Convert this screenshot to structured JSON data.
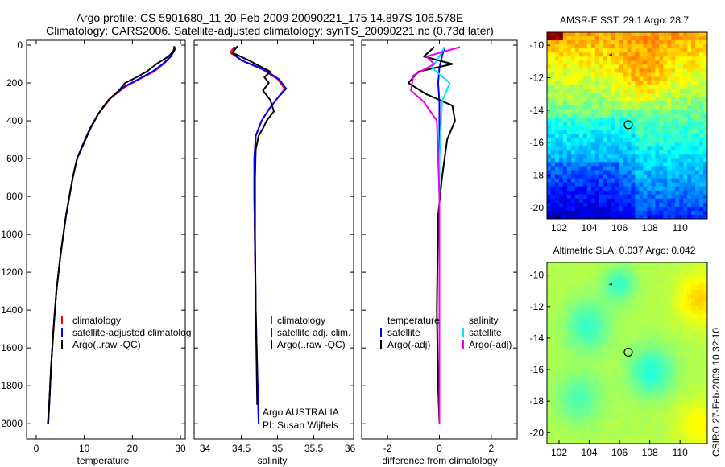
{
  "header": {
    "line1": "Argo profile: CS 5901680_11 20-Feb-2009 20090221_175 14.897S 106.578E",
    "line2": "Climatology: CARS2006. Satellite-adjusted climatology: synTS_20090221.nc (0.73d later)"
  },
  "colors": {
    "climatology": "#ff0000",
    "satellite": "#0000ff",
    "argo": "#000000",
    "sal_satellite": "#00e5ee",
    "sal_argo": "#ee00ee"
  },
  "chart_data": [
    {
      "type": "line",
      "panel": "temperature",
      "xlabel": "temperature",
      "ylabel": "",
      "xlim": [
        -2,
        31
      ],
      "ylim": [
        2080,
        0
      ],
      "x_ticks": [
        0,
        10,
        20,
        30
      ],
      "y_ticks": [
        0,
        200,
        400,
        600,
        800,
        1000,
        1200,
        1400,
        1600,
        1800,
        2000
      ],
      "legend": [
        "climatology",
        "satellite-adjusted climatolog",
        "Argo(..raw -QC)"
      ],
      "series": [
        {
          "name": "climatology",
          "x": [
            28.8,
            28.5,
            28.0,
            26.5,
            24.5,
            21.5,
            18.5,
            15.5,
            13.0,
            11.2,
            9.8,
            8.5,
            7.6,
            6.2,
            5.1,
            4.2,
            3.6,
            3.1,
            2.7,
            2.5
          ],
          "y": [
            10,
            30,
            60,
            100,
            140,
            180,
            220,
            280,
            360,
            440,
            520,
            600,
            700,
            900,
            1100,
            1300,
            1500,
            1700,
            1900,
            2000
          ]
        },
        {
          "name": "satellite-adjusted climatology",
          "x": [
            29.0,
            28.7,
            28.0,
            26.3,
            24.2,
            21.3,
            18.3,
            15.4,
            13.0,
            11.2,
            9.8,
            8.5,
            7.6,
            6.2,
            5.1,
            4.2,
            3.6,
            3.1,
            2.7,
            2.5
          ],
          "y": [
            10,
            30,
            60,
            100,
            140,
            180,
            220,
            280,
            360,
            440,
            520,
            600,
            700,
            900,
            1100,
            1300,
            1500,
            1700,
            1900,
            2000
          ]
        },
        {
          "name": "Argo(..raw -QC)",
          "x": [
            28.7,
            28.6,
            27.5,
            25.0,
            23.0,
            20.5,
            18.5,
            17.2,
            15.0,
            13.0,
            11.3,
            9.9,
            8.5,
            7.6,
            6.2,
            5.1,
            4.2,
            3.6,
            3.1,
            2.7,
            2.4
          ],
          "y": [
            5,
            30,
            60,
            100,
            140,
            175,
            200,
            240,
            290,
            360,
            440,
            520,
            600,
            700,
            900,
            1100,
            1300,
            1500,
            1700,
            1900,
            2000
          ]
        }
      ]
    },
    {
      "type": "line",
      "panel": "salinity",
      "xlabel": "salinity",
      "ylabel": "",
      "xlim": [
        33.85,
        36.05
      ],
      "ylim": [
        2080,
        0
      ],
      "x_ticks": [
        34,
        34.5,
        35,
        35.5,
        36
      ],
      "legend": [
        "climatology",
        "satellite adj. clim.",
        "Argo(..raw -QC)"
      ],
      "annotations": [
        "Argo AUSTRALIA",
        "PI: Susan Wijffels"
      ],
      "series": [
        {
          "name": "climatology",
          "x": [
            34.4,
            34.35,
            34.5,
            34.8,
            35.0,
            35.1,
            35.0,
            34.88,
            34.78,
            34.7,
            34.68,
            34.68,
            34.69,
            34.7,
            34.72,
            34.74
          ],
          "y": [
            10,
            40,
            80,
            130,
            180,
            230,
            280,
            340,
            400,
            480,
            600,
            800,
            1100,
            1400,
            1700,
            2000
          ]
        },
        {
          "name": "satellite adj. clim.",
          "x": [
            34.42,
            34.38,
            34.5,
            34.82,
            35.02,
            35.12,
            35.0,
            34.88,
            34.78,
            34.7,
            34.68,
            34.68,
            34.69,
            34.7,
            34.72,
            34.74
          ],
          "y": [
            10,
            40,
            80,
            130,
            180,
            230,
            280,
            340,
            400,
            480,
            600,
            800,
            1100,
            1400,
            1700,
            2000
          ]
        },
        {
          "name": "Argo(..raw -QC)",
          "x": [
            34.45,
            34.38,
            34.6,
            34.75,
            34.9,
            34.82,
            34.88,
            34.8,
            34.9,
            34.95,
            34.85,
            34.8,
            34.74,
            34.7,
            34.69,
            34.69,
            34.7,
            34.72
          ],
          "y": [
            5,
            40,
            80,
            110,
            140,
            170,
            200,
            240,
            290,
            350,
            400,
            440,
            480,
            550,
            700,
            1000,
            1400,
            1900
          ]
        }
      ]
    },
    {
      "type": "line",
      "panel": "difference",
      "xlabel": "difference from climatology",
      "ylabel": "",
      "xlim": [
        -3,
        3
      ],
      "ylim": [
        2080,
        0
      ],
      "x_ticks": [
        -2,
        0,
        2
      ],
      "legend": [
        "temperature",
        "satellite",
        "Argo(-adj)",
        "salinity",
        "satellite",
        "Argo(-adj)"
      ],
      "series": [
        {
          "name": "temperature satellite",
          "x": [
            0.2,
            0.1,
            0.0,
            -0.05,
            0.0,
            0.0,
            0.0,
            0.0
          ],
          "y": [
            10,
            60,
            120,
            200,
            300,
            600,
            1200,
            2000
          ]
        },
        {
          "name": "temperature Argo(-adj)",
          "x": [
            -0.2,
            -0.6,
            0.5,
            -0.8,
            -1.2,
            -0.5,
            0.5,
            0.6,
            0.3,
            0.1,
            -0.05,
            -0.1,
            -0.05,
            0.0
          ],
          "y": [
            10,
            60,
            100,
            140,
            200,
            260,
            320,
            400,
            500,
            700,
            900,
            1400,
            1800,
            2000
          ]
        },
        {
          "name": "salinity satellite",
          "x": [
            0.2,
            0.0,
            -0.3,
            0.4,
            0.1,
            0.0,
            0.0,
            0.0
          ],
          "y": [
            10,
            60,
            120,
            200,
            300,
            600,
            1200,
            2000
          ]
        },
        {
          "name": "salinity Argo(-adj)",
          "x": [
            0.8,
            -0.5,
            -0.2,
            -1.0,
            -1.1,
            -0.6,
            -0.1,
            0.0,
            0.0
          ],
          "y": [
            10,
            60,
            100,
            160,
            240,
            300,
            400,
            800,
            2000
          ]
        }
      ]
    },
    {
      "type": "heatmap",
      "panel": "AMSR-E SST map",
      "title": "AMSR-E SST: 29.1 Argo: 28.7",
      "xlim": [
        101.2,
        111.8
      ],
      "ylim": [
        -20.7,
        -9.2
      ],
      "x_ticks": [
        102,
        104,
        106,
        108,
        110
      ],
      "y_ticks": [
        -10,
        -12,
        -14,
        -16,
        -18,
        -20
      ],
      "argo_position": [
        106.578,
        -14.897
      ]
    },
    {
      "type": "heatmap",
      "panel": "Altimetric SLA map",
      "title": "Altimetric SLA: 0.037 Argo: 0.042",
      "xlim": [
        101.2,
        111.8
      ],
      "ylim": [
        -20.7,
        -9.2
      ],
      "x_ticks": [
        102,
        104,
        106,
        108,
        110
      ],
      "y_ticks": [
        -10,
        -12,
        -14,
        -16,
        -18,
        -20
      ],
      "argo_position": [
        106.578,
        -14.897
      ]
    }
  ],
  "footer": {
    "stamp": "CSIRO 27-Feb-2009 10:32:10"
  }
}
